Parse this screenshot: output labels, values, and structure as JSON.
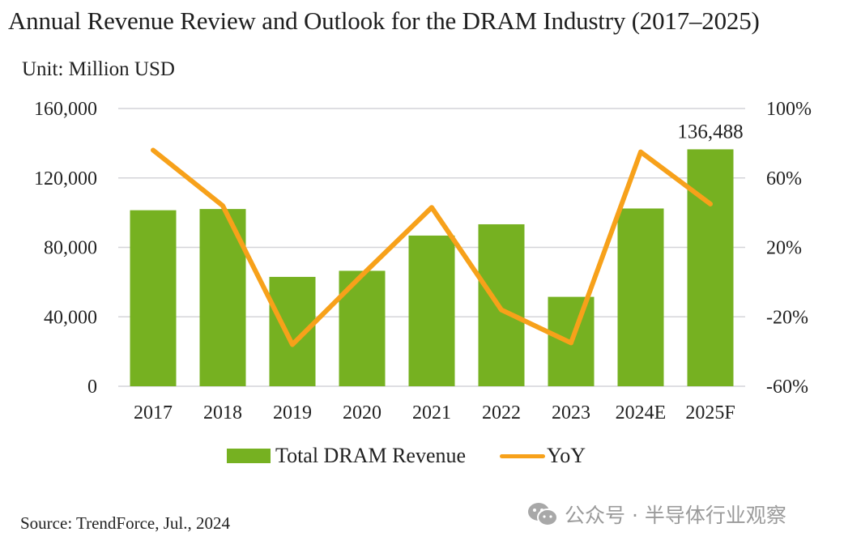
{
  "header": {
    "title": "Annual Revenue Review and Outlook for the DRAM Industry (2017–2025)",
    "unit": "Unit: Million USD"
  },
  "colors": {
    "bar": "#76b121",
    "line": "#f7a11a",
    "grid": "#d4d4d8",
    "watermark": "#9a9a9a"
  },
  "chart_data": {
    "type": "bar+line",
    "title": "Annual Revenue Review and Outlook for the DRAM Industry (2017–2025)",
    "unit_label": "Unit: Million USD",
    "categories": [
      "2017",
      "2018",
      "2019",
      "2020",
      "2021",
      "2022",
      "2023",
      "2024E",
      "2025F"
    ],
    "series": [
      {
        "name": "Total DRAM Revenue",
        "type": "bar",
        "axis": "left",
        "values": [
          101400,
          102100,
          63000,
          66500,
          86800,
          93300,
          51500,
          102400,
          136488
        ]
      },
      {
        "name": "YoY",
        "type": "line",
        "axis": "right",
        "unit": "%",
        "values": [
          76,
          44,
          -36,
          4,
          43,
          -16,
          -35,
          75,
          45
        ]
      }
    ],
    "data_labels": [
      {
        "category": "2025F",
        "text": "136,488"
      }
    ],
    "y_left": {
      "min": 0,
      "max": 160000,
      "ticks": [
        0,
        40000,
        80000,
        120000,
        160000
      ],
      "tick_labels": [
        "0",
        "40,000",
        "80,000",
        "120,000",
        "160,000"
      ]
    },
    "y_right": {
      "min": -60,
      "max": 100,
      "ticks": [
        -60,
        -20,
        20,
        60,
        100
      ],
      "tick_labels": [
        "-60%",
        "-20%",
        "20%",
        "60%",
        "100%"
      ]
    },
    "xlabel": "",
    "ylabel": "",
    "grid": true,
    "legend": {
      "position": "bottom",
      "entries": [
        "Total DRAM Revenue",
        "YoY"
      ]
    }
  },
  "footer": {
    "source": "Source: TrendForce, Jul., 2024",
    "watermark_icon": "wechat-icon",
    "watermark_text": "公众号 · 半导体行业观察"
  }
}
